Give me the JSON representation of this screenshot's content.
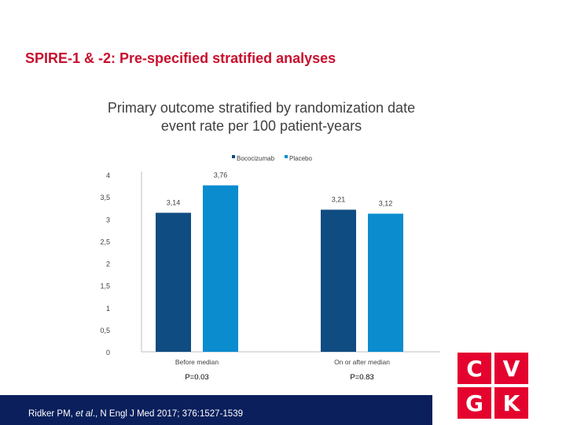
{
  "slide": {
    "title": "SPIRE-1 & -2: Pre-specified stratified analyses",
    "subtitle_line1": "Primary outcome stratified by randomization date",
    "subtitle_line2": "event rate per 100 patient-years",
    "footer_authors": "Ridker PM, ",
    "footer_etal": "et al",
    "footer_ref": "., N Engl J Med 2017; 376:1527-1539"
  },
  "logo": {
    "letters": [
      "C",
      "V",
      "G",
      "K"
    ]
  },
  "colors": {
    "series1": "#0f4c81",
    "series2": "#0a8ccf",
    "axis": "#bfbfbf",
    "text": "#404040",
    "title": "#c8102e"
  },
  "chart_data": {
    "type": "bar",
    "title": "Primary outcome stratified by randomization date event rate per 100 patient-years",
    "categories": [
      "Before median",
      "On or after median"
    ],
    "series": [
      {
        "name": "Bococizumab",
        "values": [
          3.14,
          3.21
        ],
        "labels": [
          "3,14",
          "3,21"
        ]
      },
      {
        "name": "Placebo",
        "values": [
          3.76,
          3.12
        ],
        "labels": [
          "3,76",
          "3,12"
        ]
      }
    ],
    "ylim": [
      0,
      4
    ],
    "yticks": [
      0,
      0.5,
      1,
      1.5,
      2,
      2.5,
      3,
      3.5,
      4
    ],
    "ytick_labels": [
      "0",
      "0,5",
      "1",
      "1,5",
      "2",
      "2,5",
      "3",
      "3,5",
      "4"
    ],
    "annotations": [
      "P=0.03",
      "P=0.83"
    ],
    "legend": "top-center"
  }
}
